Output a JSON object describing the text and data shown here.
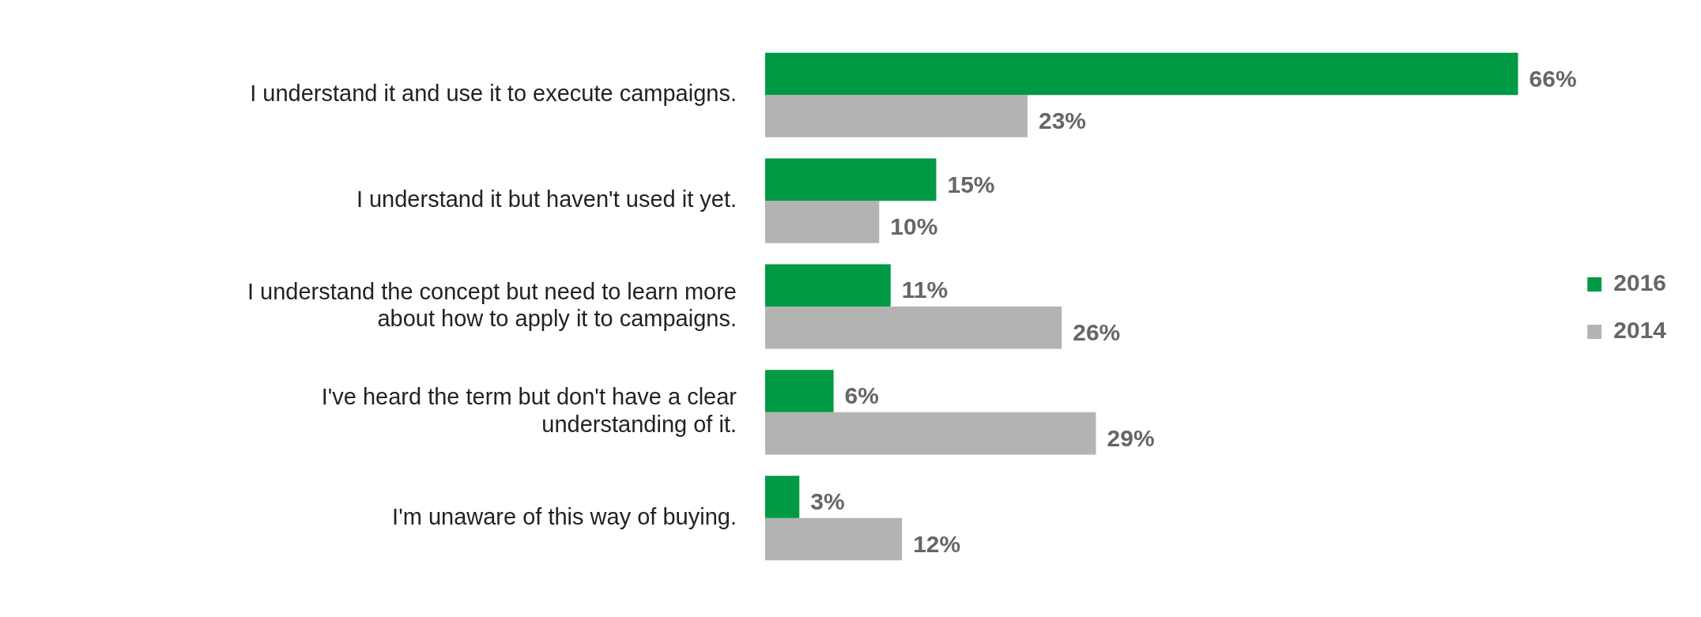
{
  "chart_data": {
    "type": "bar",
    "orientation": "horizontal",
    "categories": [
      "I understand it and use it to execute campaigns.",
      "I understand it but haven't used it yet.",
      "I understand the concept but need to learn more about how to apply it to campaigns.",
      "I've heard the term but don't have a clear understanding of it.",
      "I'm unaware of this way of buying."
    ],
    "series": [
      {
        "name": "2016",
        "color": "#009a44",
        "values": [
          66,
          15,
          11,
          6,
          3
        ],
        "value_labels": [
          "66%",
          "15%",
          "11%",
          "6%",
          "3%"
        ]
      },
      {
        "name": "2014",
        "color": "#b3b4b2",
        "values": [
          23,
          10,
          26,
          29,
          12
        ],
        "value_labels": [
          "23%",
          "10%",
          "26%",
          "29%",
          "12%"
        ]
      }
    ],
    "legend": "right",
    "tick_labels": "y"
  }
}
